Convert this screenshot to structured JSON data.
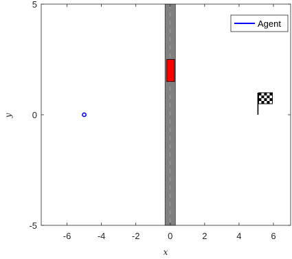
{
  "chart_data": {
    "type": "scatter",
    "xlabel": "x",
    "ylabel": "y",
    "xlim": [
      -7.5,
      7
    ],
    "ylim": [
      -5,
      5
    ],
    "x_ticks": [
      -6,
      -4,
      -2,
      0,
      2,
      4,
      6
    ],
    "y_ticks": [
      -5,
      0,
      5
    ],
    "grid": false,
    "legend": {
      "placement": "top-right",
      "entries": [
        "Agent"
      ]
    },
    "series": [
      {
        "name": "Agent",
        "color": "#0000ff",
        "marker": "circle",
        "points": [
          [
            -5,
            0
          ]
        ]
      }
    ],
    "road": {
      "x_range": [
        -0.3,
        0.3
      ],
      "y_range": [
        -5,
        5
      ],
      "fill": "#808080",
      "center_line": "#b3b3b3"
    },
    "obstacle": {
      "x_range": [
        -0.2,
        0.25
      ],
      "y_range": [
        1.5,
        2.5
      ],
      "fill": "#ff0000"
    },
    "goal": {
      "icon": "checkered-flag-icon",
      "x": 5.1,
      "y": 0
    }
  }
}
